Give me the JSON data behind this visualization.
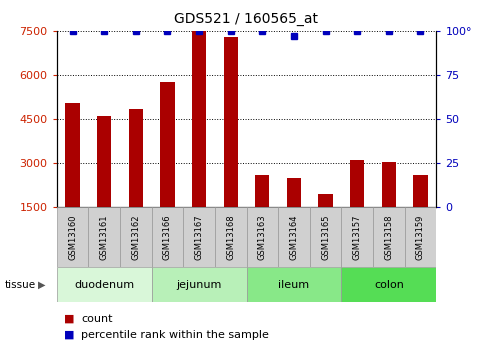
{
  "title": "GDS521 / 160565_at",
  "samples": [
    "GSM13160",
    "GSM13161",
    "GSM13162",
    "GSM13166",
    "GSM13167",
    "GSM13168",
    "GSM13163",
    "GSM13164",
    "GSM13165",
    "GSM13157",
    "GSM13158",
    "GSM13159"
  ],
  "counts": [
    5050,
    4600,
    4850,
    5750,
    7500,
    7300,
    2600,
    2500,
    1950,
    3100,
    3050,
    2600
  ],
  "percentiles": [
    100,
    100,
    100,
    100,
    100,
    100,
    100,
    97,
    100,
    100,
    100,
    100
  ],
  "tissues": [
    {
      "label": "duodenum",
      "start": 0,
      "end": 3
    },
    {
      "label": "jejunum",
      "start": 3,
      "end": 6
    },
    {
      "label": "ileum",
      "start": 6,
      "end": 9
    },
    {
      "label": "colon",
      "start": 9,
      "end": 12
    }
  ],
  "tissue_colors": [
    "#d9f7d9",
    "#b8f0b8",
    "#88e888",
    "#55dd55"
  ],
  "ylim_left": [
    1500,
    7500
  ],
  "ylim_right": [
    0,
    100
  ],
  "yticks_left": [
    1500,
    3000,
    4500,
    6000,
    7500
  ],
  "yticks_right": [
    0,
    25,
    50,
    75,
    100
  ],
  "bar_color": "#aa0000",
  "dot_color": "#0000bb",
  "bar_bottom": 1500,
  "bar_width": 0.45,
  "sample_box_color": "#d0d0d0",
  "left_axis_color": "#cc2200",
  "right_axis_color": "#0000bb"
}
